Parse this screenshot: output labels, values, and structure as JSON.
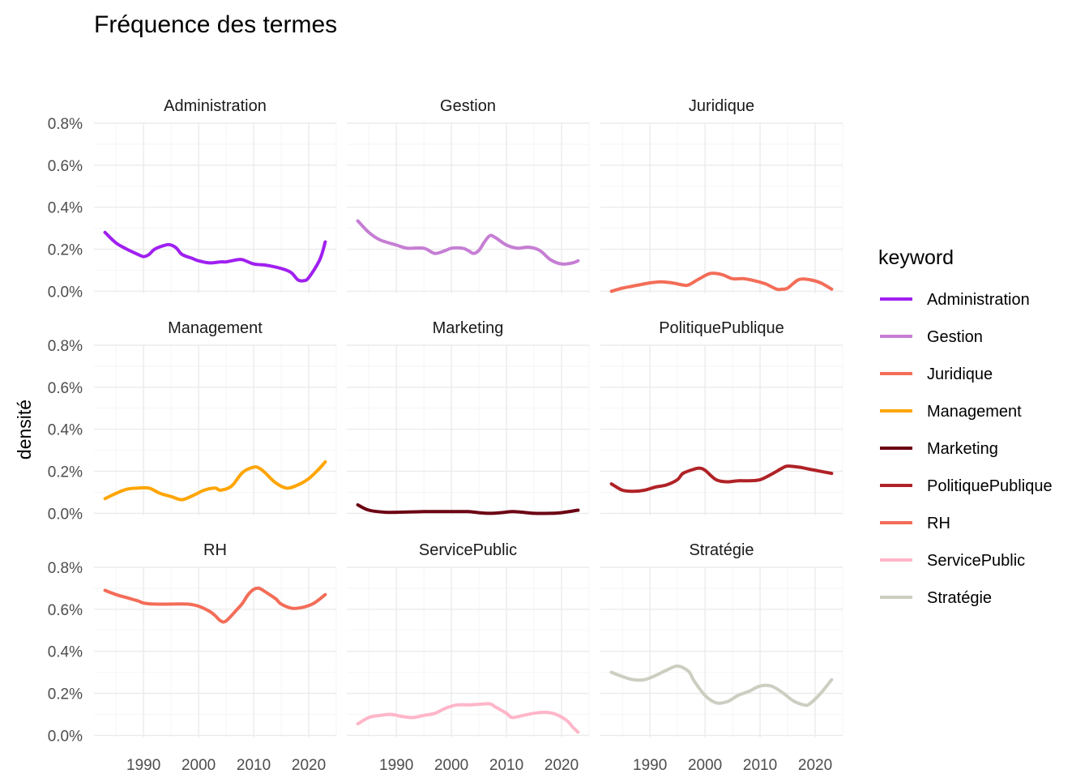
{
  "chart_data": {
    "type": "line",
    "title": "Fréquence des termes",
    "ylabel": "densité",
    "xlabel": "",
    "x_ticks": [
      1990,
      2000,
      2010,
      2020
    ],
    "xlim": [
      1981,
      2025
    ],
    "y_ticks": [
      "0.0%",
      "0.2%",
      "0.4%",
      "0.6%",
      "0.8%"
    ],
    "y_tick_values": [
      0,
      0.2,
      0.4,
      0.6,
      0.8
    ],
    "ylim": [
      -0.01,
      0.8
    ],
    "grid": true,
    "legend": {
      "title": "keyword",
      "position": "right"
    },
    "facets": [
      {
        "name": "Administration",
        "color": "#A020F0",
        "points": [
          [
            1983,
            0.28
          ],
          [
            1985,
            0.23
          ],
          [
            1987,
            0.2
          ],
          [
            1989,
            0.175
          ],
          [
            1990,
            0.165
          ],
          [
            1991,
            0.175
          ],
          [
            1992,
            0.2
          ],
          [
            1994,
            0.22
          ],
          [
            1995,
            0.22
          ],
          [
            1996,
            0.205
          ],
          [
            1997,
            0.175
          ],
          [
            1999,
            0.155
          ],
          [
            2000,
            0.145
          ],
          [
            2002,
            0.135
          ],
          [
            2004,
            0.14
          ],
          [
            2005,
            0.14
          ],
          [
            2007,
            0.15
          ],
          [
            2008,
            0.15
          ],
          [
            2010,
            0.13
          ],
          [
            2012,
            0.125
          ],
          [
            2014,
            0.115
          ],
          [
            2016,
            0.1
          ],
          [
            2017,
            0.085
          ],
          [
            2018,
            0.055
          ],
          [
            2019,
            0.05
          ],
          [
            2020,
            0.065
          ],
          [
            2022,
            0.15
          ],
          [
            2023,
            0.235
          ]
        ]
      },
      {
        "name": "Gestion",
        "color": "#C67ED4",
        "points": [
          [
            1983,
            0.335
          ],
          [
            1985,
            0.28
          ],
          [
            1987,
            0.245
          ],
          [
            1990,
            0.22
          ],
          [
            1992,
            0.205
          ],
          [
            1995,
            0.205
          ],
          [
            1997,
            0.18
          ],
          [
            1999,
            0.195
          ],
          [
            2000,
            0.205
          ],
          [
            2002,
            0.205
          ],
          [
            2003,
            0.195
          ],
          [
            2004,
            0.18
          ],
          [
            2005,
            0.195
          ],
          [
            2006,
            0.235
          ],
          [
            2007,
            0.265
          ],
          [
            2008,
            0.255
          ],
          [
            2010,
            0.22
          ],
          [
            2012,
            0.205
          ],
          [
            2014,
            0.21
          ],
          [
            2016,
            0.195
          ],
          [
            2018,
            0.15
          ],
          [
            2020,
            0.13
          ],
          [
            2022,
            0.135
          ],
          [
            2023,
            0.145
          ]
        ]
      },
      {
        "name": "Juridique",
        "color": "#F36D58",
        "points": [
          [
            1983,
            0.0
          ],
          [
            1985,
            0.015
          ],
          [
            1987,
            0.025
          ],
          [
            1990,
            0.04
          ],
          [
            1992,
            0.045
          ],
          [
            1994,
            0.04
          ],
          [
            1996,
            0.03
          ],
          [
            1997,
            0.03
          ],
          [
            1999,
            0.06
          ],
          [
            2001,
            0.085
          ],
          [
            2003,
            0.08
          ],
          [
            2005,
            0.06
          ],
          [
            2007,
            0.06
          ],
          [
            2009,
            0.05
          ],
          [
            2011,
            0.035
          ],
          [
            2013,
            0.01
          ],
          [
            2014,
            0.01
          ],
          [
            2015,
            0.015
          ],
          [
            2017,
            0.055
          ],
          [
            2019,
            0.055
          ],
          [
            2021,
            0.04
          ],
          [
            2023,
            0.01
          ]
        ]
      },
      {
        "name": "Management",
        "color": "#FFA500",
        "points": [
          [
            1983,
            0.07
          ],
          [
            1985,
            0.095
          ],
          [
            1987,
            0.115
          ],
          [
            1989,
            0.12
          ],
          [
            1991,
            0.12
          ],
          [
            1993,
            0.095
          ],
          [
            1995,
            0.08
          ],
          [
            1997,
            0.065
          ],
          [
            1999,
            0.085
          ],
          [
            2001,
            0.11
          ],
          [
            2003,
            0.12
          ],
          [
            2004,
            0.11
          ],
          [
            2006,
            0.13
          ],
          [
            2008,
            0.195
          ],
          [
            2010,
            0.22
          ],
          [
            2011,
            0.215
          ],
          [
            2012,
            0.195
          ],
          [
            2014,
            0.145
          ],
          [
            2016,
            0.12
          ],
          [
            2018,
            0.135
          ],
          [
            2020,
            0.165
          ],
          [
            2022,
            0.215
          ],
          [
            2023,
            0.245
          ]
        ]
      },
      {
        "name": "Marketing",
        "color": "#6B0012",
        "points": [
          [
            1983,
            0.04
          ],
          [
            1985,
            0.015
          ],
          [
            1988,
            0.005
          ],
          [
            1990,
            0.005
          ],
          [
            1995,
            0.008
          ],
          [
            2000,
            0.008
          ],
          [
            2003,
            0.008
          ],
          [
            2005,
            0.003
          ],
          [
            2007,
            0.0
          ],
          [
            2009,
            0.003
          ],
          [
            2011,
            0.008
          ],
          [
            2013,
            0.005
          ],
          [
            2015,
            0.0
          ],
          [
            2018,
            0.0
          ],
          [
            2020,
            0.003
          ],
          [
            2023,
            0.015
          ]
        ]
      },
      {
        "name": "PolitiquePublique",
        "color": "#B02226",
        "points": [
          [
            1983,
            0.14
          ],
          [
            1985,
            0.11
          ],
          [
            1987,
            0.105
          ],
          [
            1989,
            0.11
          ],
          [
            1991,
            0.125
          ],
          [
            1993,
            0.135
          ],
          [
            1995,
            0.16
          ],
          [
            1996,
            0.19
          ],
          [
            1998,
            0.21
          ],
          [
            1999,
            0.215
          ],
          [
            2000,
            0.205
          ],
          [
            2002,
            0.16
          ],
          [
            2004,
            0.15
          ],
          [
            2006,
            0.155
          ],
          [
            2008,
            0.155
          ],
          [
            2010,
            0.16
          ],
          [
            2012,
            0.185
          ],
          [
            2014,
            0.215
          ],
          [
            2015,
            0.225
          ],
          [
            2017,
            0.22
          ],
          [
            2019,
            0.21
          ],
          [
            2021,
            0.2
          ],
          [
            2023,
            0.19
          ]
        ]
      },
      {
        "name": "RH",
        "color": "#F36D58",
        "points": [
          [
            1983,
            0.69
          ],
          [
            1985,
            0.67
          ],
          [
            1987,
            0.655
          ],
          [
            1989,
            0.64
          ],
          [
            1990,
            0.63
          ],
          [
            1992,
            0.625
          ],
          [
            1995,
            0.625
          ],
          [
            1998,
            0.625
          ],
          [
            2000,
            0.615
          ],
          [
            2002,
            0.59
          ],
          [
            2003,
            0.57
          ],
          [
            2004,
            0.545
          ],
          [
            2005,
            0.545
          ],
          [
            2007,
            0.6
          ],
          [
            2008,
            0.63
          ],
          [
            2009,
            0.67
          ],
          [
            2010,
            0.695
          ],
          [
            2011,
            0.7
          ],
          [
            2012,
            0.685
          ],
          [
            2014,
            0.65
          ],
          [
            2015,
            0.625
          ],
          [
            2017,
            0.605
          ],
          [
            2019,
            0.61
          ],
          [
            2021,
            0.63
          ],
          [
            2023,
            0.67
          ]
        ]
      },
      {
        "name": "ServicePublic",
        "color": "#FFB6C8",
        "points": [
          [
            1983,
            0.055
          ],
          [
            1985,
            0.085
          ],
          [
            1987,
            0.095
          ],
          [
            1989,
            0.1
          ],
          [
            1991,
            0.09
          ],
          [
            1993,
            0.085
          ],
          [
            1995,
            0.095
          ],
          [
            1997,
            0.105
          ],
          [
            1999,
            0.13
          ],
          [
            2001,
            0.145
          ],
          [
            2003,
            0.145
          ],
          [
            2005,
            0.148
          ],
          [
            2007,
            0.15
          ],
          [
            2008,
            0.135
          ],
          [
            2010,
            0.105
          ],
          [
            2011,
            0.085
          ],
          [
            2013,
            0.095
          ],
          [
            2015,
            0.105
          ],
          [
            2017,
            0.11
          ],
          [
            2019,
            0.1
          ],
          [
            2021,
            0.07
          ],
          [
            2022,
            0.04
          ],
          [
            2023,
            0.015
          ]
        ]
      },
      {
        "name": "Stratégie",
        "color": "#CBCFC1",
        "points": [
          [
            1983,
            0.3
          ],
          [
            1985,
            0.28
          ],
          [
            1987,
            0.265
          ],
          [
            1989,
            0.265
          ],
          [
            1991,
            0.285
          ],
          [
            1993,
            0.31
          ],
          [
            1995,
            0.33
          ],
          [
            1997,
            0.305
          ],
          [
            1998,
            0.26
          ],
          [
            2000,
            0.19
          ],
          [
            2002,
            0.155
          ],
          [
            2004,
            0.16
          ],
          [
            2006,
            0.19
          ],
          [
            2008,
            0.21
          ],
          [
            2010,
            0.235
          ],
          [
            2012,
            0.235
          ],
          [
            2014,
            0.205
          ],
          [
            2016,
            0.165
          ],
          [
            2018,
            0.145
          ],
          [
            2019,
            0.15
          ],
          [
            2021,
            0.2
          ],
          [
            2023,
            0.265
          ]
        ]
      }
    ]
  }
}
